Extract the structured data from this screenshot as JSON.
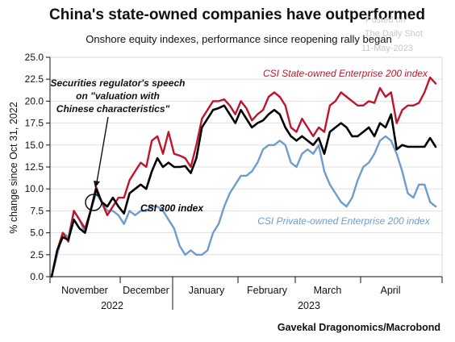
{
  "title": "China's state-owned companies have outperformed",
  "subtitle": "Onshore equity indexes, performance since reopening rally began",
  "watermark": {
    "line1": "Posted on",
    "line2": "The Daily Shot",
    "line3": "11-May-2023"
  },
  "source": "Gavekal Dragonomics/Macrobond",
  "annotation": {
    "line1": "Securities regulator's speech",
    "line2": "on \"valuation with",
    "line3": "Chinese characteristics\""
  },
  "colors": {
    "soe": "#c0142c",
    "csi300": "#000000",
    "private": "#6f9ccb",
    "grid": "#d9d9d9",
    "axis": "#111111"
  },
  "chart_data": {
    "type": "line",
    "ylabel": "% change since Oct 31, 2022",
    "ylim": [
      0,
      25
    ],
    "yticks": [
      "0.0",
      "2.5",
      "5.0",
      "7.5",
      "10.0",
      "12.5",
      "15.0",
      "17.5",
      "20.0",
      "22.5",
      "25.0"
    ],
    "grid": true,
    "x_axis": {
      "months": [
        "November",
        "December",
        "January",
        "February",
        "March",
        "April"
      ],
      "years": [
        "2022",
        "2023"
      ]
    },
    "series": [
      {
        "name": "CSI State-owned Enterprise 200 index",
        "color": "#c0142c",
        "values": [
          0.0,
          3.0,
          5.0,
          4.0,
          7.5,
          6.5,
          5.5,
          7.5,
          10.2,
          8.5,
          7.0,
          8.0,
          9.0,
          9.0,
          11.0,
          12.0,
          13.0,
          12.5,
          15.5,
          16.0,
          14.0,
          16.5,
          14.0,
          13.8,
          13.5,
          12.5,
          15.0,
          18.0,
          19.0,
          20.0,
          20.0,
          20.2,
          19.5,
          18.5,
          20.0,
          19.2,
          17.8,
          18.5,
          19.0,
          20.5,
          21.0,
          20.5,
          19.5,
          17.0,
          16.5,
          18.0,
          17.0,
          16.0,
          17.0,
          16.5,
          19.5,
          20.0,
          21.0,
          20.5,
          20.0,
          19.5,
          19.5,
          20.0,
          19.8,
          21.5,
          20.5,
          21.0,
          17.5,
          19.0,
          19.5,
          19.5,
          19.8,
          21.0,
          22.7,
          22.0
        ]
      },
      {
        "name": "CSI 300 index",
        "color": "#000000",
        "values": [
          0.0,
          3.0,
          4.5,
          4.2,
          6.5,
          5.5,
          5.0,
          7.5,
          10.0,
          8.5,
          8.0,
          9.0,
          8.0,
          7.2,
          9.5,
          10.0,
          10.5,
          10.0,
          12.0,
          13.5,
          12.5,
          13.0,
          12.5,
          12.5,
          12.6,
          11.8,
          13.5,
          17.0,
          18.0,
          19.0,
          19.2,
          19.5,
          18.5,
          17.5,
          19.0,
          18.0,
          17.0,
          17.5,
          17.8,
          18.5,
          19.0,
          18.5,
          17.0,
          16.0,
          15.5,
          16.0,
          15.5,
          15.0,
          15.8,
          14.0,
          16.5,
          17.0,
          17.5,
          17.0,
          16.0,
          16.0,
          16.5,
          17.0,
          16.0,
          17.5,
          17.0,
          18.5,
          14.5,
          15.0,
          14.8,
          14.8,
          14.8,
          14.8,
          15.8,
          14.8
        ]
      },
      {
        "name": "CSI Private-owned Enterprise 200 index",
        "color": "#6f9ccb",
        "values": [
          0.0,
          2.5,
          5.0,
          4.5,
          7.5,
          6.5,
          5.0,
          7.5,
          9.5,
          8.5,
          7.5,
          7.5,
          7.0,
          6.0,
          7.5,
          7.0,
          7.5,
          7.5,
          8.0,
          8.0,
          7.5,
          6.5,
          5.5,
          3.5,
          2.5,
          3.0,
          2.5,
          2.5,
          3.0,
          5.0,
          6.0,
          8.0,
          9.5,
          10.5,
          11.5,
          11.5,
          12.0,
          13.0,
          14.5,
          15.0,
          15.0,
          15.5,
          15.0,
          13.0,
          12.5,
          14.0,
          14.5,
          14.0,
          15.0,
          12.0,
          10.5,
          9.5,
          8.5,
          8.0,
          9.0,
          11.0,
          12.5,
          13.0,
          14.0,
          15.5,
          16.0,
          15.5,
          14.0,
          12.0,
          9.5,
          9.0,
          10.5,
          10.5,
          8.5,
          8.0
        ]
      }
    ]
  }
}
